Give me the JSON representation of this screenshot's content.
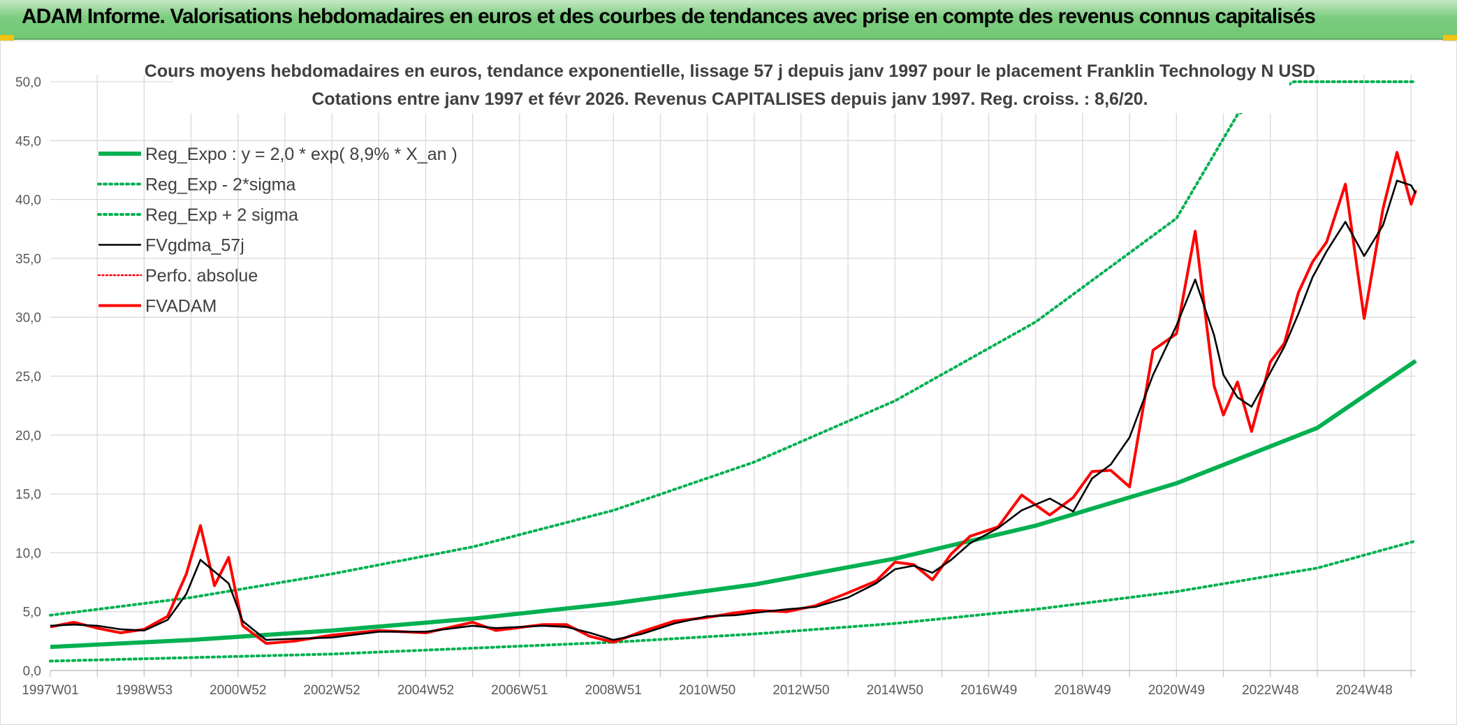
{
  "banner": {
    "title": "ADAM Informe. Valorisations hebdomadaires en euros et des courbes de tendances avec prise en compte des revenus connus capitalisés"
  },
  "colors": {
    "banner_green": "#7ccc7f",
    "reg_green": "#00b050",
    "moving_avg": "#000000",
    "price_red": "#ff0000",
    "grid": "#d9d9d9",
    "corner_gold": "#f2c20f"
  },
  "chart_data": {
    "type": "line",
    "title": "Cours moyens hebdomadaires en euros, tendance exponentielle, lissage 57 j depuis janv 1997 pour le placement Franklin Technology N USD",
    "subtitle": "Cotations entre janv 1997 et févr 2026. Revenus CAPITALISES depuis janv 1997. Reg. croiss. : 8,6/20.",
    "xlabel": "",
    "ylabel": "",
    "xlim": [
      1997.0,
      2026.1
    ],
    "ylim": [
      0,
      50
    ],
    "y_ticks": [
      "0,0",
      "5,0",
      "10,0",
      "15,0",
      "20,0",
      "25,0",
      "30,0",
      "35,0",
      "40,0",
      "45,0",
      "50,0"
    ],
    "x_ticks": [
      {
        "label": "1997W01",
        "x": 1997.0
      },
      {
        "label": "1998W53",
        "x": 1999.0
      },
      {
        "label": "2000W52",
        "x": 2001.0
      },
      {
        "label": "2002W52",
        "x": 2003.0
      },
      {
        "label": "2004W52",
        "x": 2005.0
      },
      {
        "label": "2006W51",
        "x": 2007.0
      },
      {
        "label": "2008W51",
        "x": 2009.0
      },
      {
        "label": "2010W50",
        "x": 2011.0
      },
      {
        "label": "2012W50",
        "x": 2013.0
      },
      {
        "label": "2014W50",
        "x": 2015.0
      },
      {
        "label": "2016W49",
        "x": 2017.0
      },
      {
        "label": "2018W49",
        "x": 2019.0
      },
      {
        "label": "2020W49",
        "x": 2021.0
      },
      {
        "label": "2022W48",
        "x": 2023.0
      },
      {
        "label": "2024W48",
        "x": 2025.0
      }
    ],
    "grid": true,
    "legend_position": "top-left",
    "series": [
      {
        "name": "Reg_Expo : y = 2,0 * exp( 8,9% *  X_an )",
        "color": "#00b050",
        "style": "solid-thick",
        "x": [
          1997.0,
          2000.0,
          2003.0,
          2006.0,
          2009.0,
          2012.0,
          2015.0,
          2018.0,
          2021.0,
          2024.0,
          2026.1
        ],
        "values": [
          2.0,
          2.6,
          3.4,
          4.4,
          5.7,
          7.3,
          9.5,
          12.3,
          15.9,
          20.6,
          26.3
        ]
      },
      {
        "name": "Reg_Exp - 2*sigma",
        "color": "#00b050",
        "style": "dotted",
        "x": [
          1997.0,
          2000.0,
          2003.0,
          2006.0,
          2009.0,
          2012.0,
          2015.0,
          2018.0,
          2021.0,
          2024.0,
          2026.1
        ],
        "values": [
          0.8,
          1.1,
          1.4,
          1.9,
          2.4,
          3.1,
          4.0,
          5.2,
          6.7,
          8.7,
          11.0
        ]
      },
      {
        "name": "Reg_Exp + 2 sigma",
        "color": "#00b050",
        "style": "dotted",
        "x": [
          1997.0,
          2000.0,
          2003.0,
          2006.0,
          2009.0,
          2012.0,
          2015.0,
          2018.0,
          2021.0,
          2022.3,
          2023.5,
          2026.1
        ],
        "values": [
          4.7,
          6.2,
          8.2,
          10.5,
          13.6,
          17.7,
          22.9,
          29.6,
          38.4,
          47.2,
          50.0,
          50.0
        ]
      },
      {
        "name": "FVgdma_57j",
        "color": "#000000",
        "style": "solid-thin",
        "x": [
          1997.0,
          1997.5,
          1998.0,
          1998.5,
          1999.0,
          1999.5,
          1999.9,
          2000.2,
          2000.5,
          2000.8,
          2001.1,
          2001.6,
          2002.2,
          2003.0,
          2004.0,
          2005.0,
          2006.0,
          2006.5,
          2007.5,
          2008.0,
          2008.5,
          2009.0,
          2009.6,
          2010.3,
          2011.0,
          2011.6,
          2012.0,
          2012.7,
          2013.3,
          2014.0,
          2014.6,
          2015.0,
          2015.4,
          2015.8,
          2016.2,
          2016.6,
          2017.2,
          2017.7,
          2018.3,
          2018.8,
          2019.2,
          2019.6,
          2020.0,
          2020.5,
          2021.0,
          2021.4,
          2021.8,
          2022.0,
          2022.3,
          2022.6,
          2023.0,
          2023.3,
          2023.6,
          2023.9,
          2024.2,
          2024.6,
          2025.0,
          2025.4,
          2025.7,
          2026.0,
          2026.1
        ],
        "values": [
          3.8,
          3.9,
          3.8,
          3.5,
          3.4,
          4.3,
          6.5,
          9.4,
          8.4,
          7.4,
          4.2,
          2.6,
          2.7,
          2.8,
          3.3,
          3.3,
          3.8,
          3.6,
          3.8,
          3.7,
          3.2,
          2.6,
          3.1,
          4.0,
          4.6,
          4.7,
          4.9,
          5.2,
          5.4,
          6.2,
          7.4,
          8.6,
          8.9,
          8.3,
          9.4,
          10.8,
          12.1,
          13.6,
          14.6,
          13.5,
          16.3,
          17.5,
          19.8,
          25.1,
          29.3,
          33.2,
          28.5,
          25.1,
          23.2,
          22.4,
          25.3,
          27.5,
          30.3,
          33.4,
          35.6,
          38.1,
          35.2,
          37.8,
          41.6,
          41.2,
          40.5
        ]
      },
      {
        "name": "Perfo. absolue",
        "color": "#ff0000",
        "style": "dotted",
        "x": [],
        "values": []
      },
      {
        "name": "FVADAM",
        "color": "#ff0000",
        "style": "solid-thick",
        "x": [
          1997.0,
          1997.5,
          1998.0,
          1998.5,
          1999.0,
          1999.5,
          1999.9,
          2000.2,
          2000.5,
          2000.8,
          2001.1,
          2001.6,
          2002.2,
          2003.0,
          2004.0,
          2005.0,
          2006.0,
          2006.5,
          2007.5,
          2008.0,
          2008.5,
          2009.0,
          2009.6,
          2010.3,
          2011.0,
          2011.6,
          2012.0,
          2012.7,
          2013.3,
          2014.0,
          2014.6,
          2015.0,
          2015.4,
          2015.8,
          2016.2,
          2016.6,
          2017.2,
          2017.7,
          2018.3,
          2018.8,
          2019.2,
          2019.6,
          2020.0,
          2020.5,
          2021.0,
          2021.4,
          2021.8,
          2022.0,
          2022.3,
          2022.6,
          2023.0,
          2023.3,
          2023.6,
          2023.9,
          2024.2,
          2024.6,
          2025.0,
          2025.4,
          2025.7,
          2026.0,
          2026.1
        ],
        "values": [
          3.7,
          4.1,
          3.6,
          3.2,
          3.5,
          4.6,
          8.2,
          12.3,
          7.2,
          9.6,
          3.8,
          2.3,
          2.5,
          3.0,
          3.4,
          3.2,
          4.1,
          3.4,
          3.9,
          3.9,
          2.9,
          2.4,
          3.3,
          4.2,
          4.5,
          4.9,
          5.1,
          5.0,
          5.5,
          6.6,
          7.6,
          9.2,
          9.0,
          7.7,
          9.9,
          11.4,
          12.2,
          14.9,
          13.2,
          14.7,
          16.9,
          17.0,
          15.6,
          27.2,
          28.6,
          37.3,
          24.2,
          21.7,
          24.5,
          20.3,
          26.2,
          27.8,
          32.1,
          34.7,
          36.4,
          41.3,
          29.9,
          39.2,
          44.0,
          39.6,
          40.8
        ]
      }
    ]
  }
}
